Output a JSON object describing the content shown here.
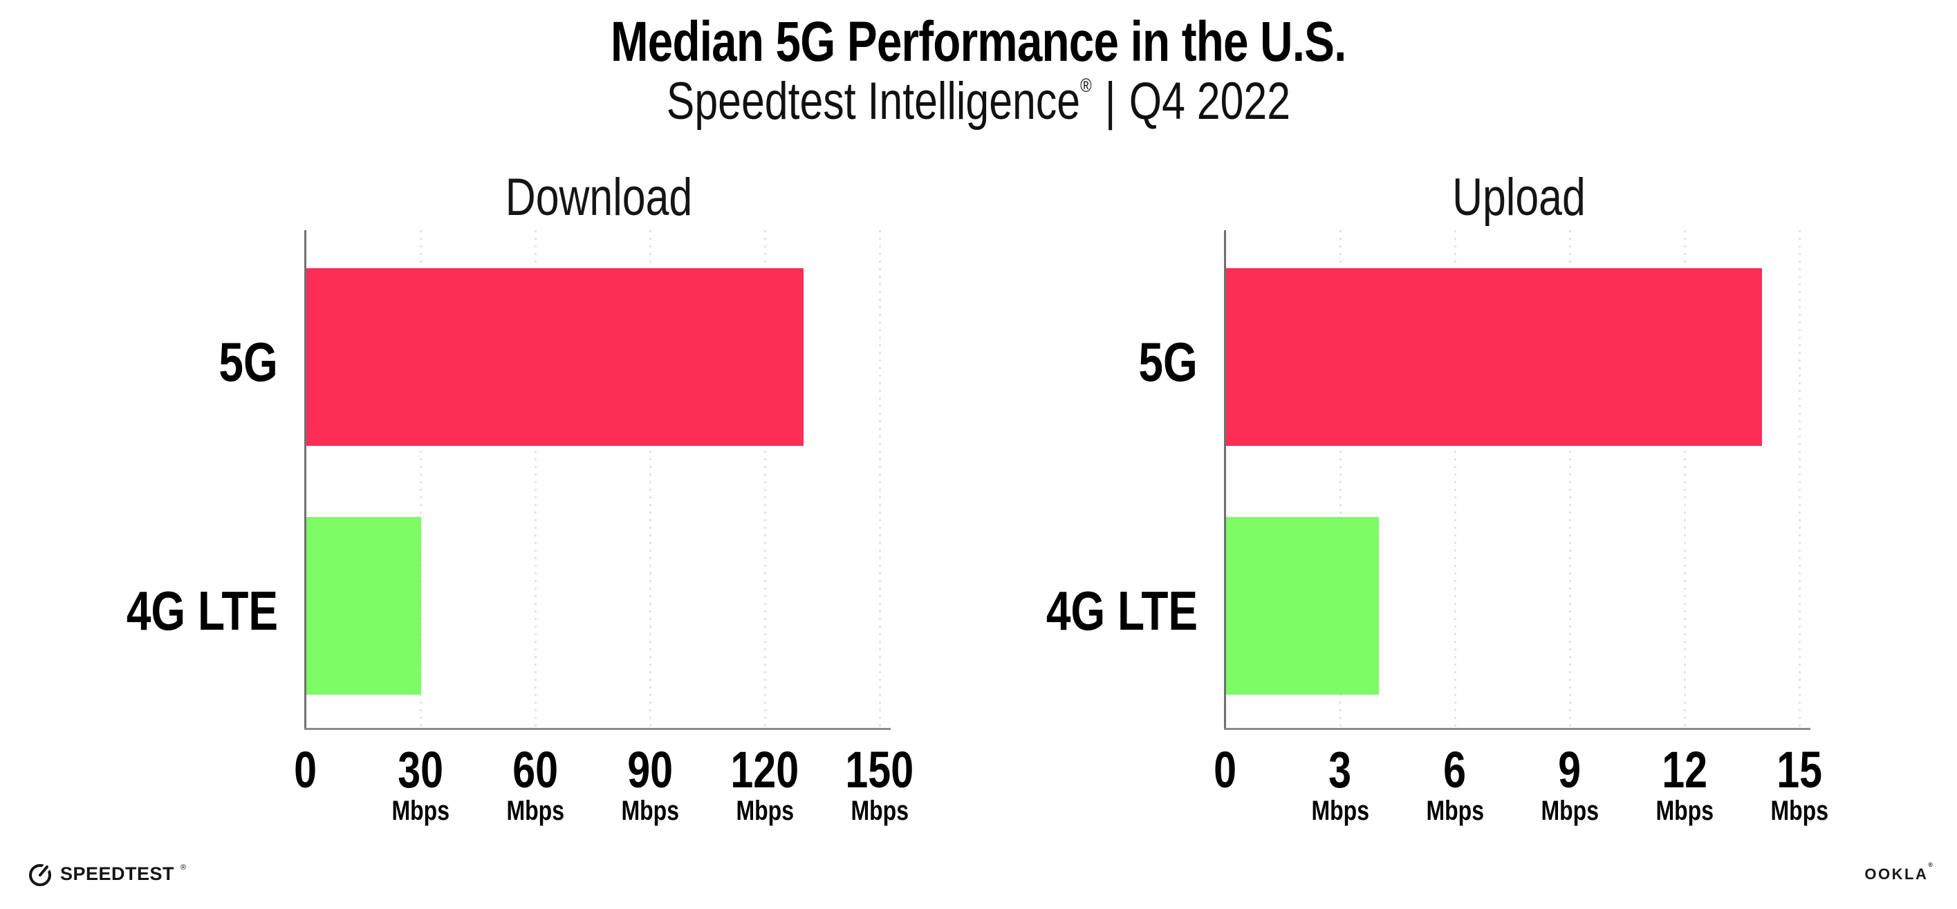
{
  "header": {
    "title": "Median 5G Performance in the U.S.",
    "subtitle": {
      "brand": "Speedtest Intelligence",
      "registered": "®",
      "separator": "|",
      "period": "Q4 2022"
    }
  },
  "chart_data": [
    {
      "type": "bar",
      "orientation": "horizontal",
      "title": "Download",
      "categories": [
        "5G",
        "4G LTE"
      ],
      "values": [
        130,
        30
      ],
      "unit": "Mbps",
      "xlim": [
        0,
        150
      ],
      "xticks": [
        0,
        30,
        60,
        90,
        120,
        150
      ],
      "series_colors": [
        "#FD2D55",
        "#7DFC66"
      ],
      "grid": "dotted vertical gridlines",
      "legend": "none"
    },
    {
      "type": "bar",
      "orientation": "horizontal",
      "title": "Upload",
      "categories": [
        "5G",
        "4G LTE"
      ],
      "values": [
        14,
        4
      ],
      "unit": "Mbps",
      "xlim": [
        0,
        15
      ],
      "xticks": [
        0,
        3,
        6,
        9,
        12,
        15
      ],
      "series_colors": [
        "#FD2D55",
        "#7DFC66"
      ],
      "grid": "dotted vertical gridlines",
      "legend": "none"
    }
  ],
  "footer": {
    "speedtest_wordmark": "SPEEDTEST",
    "speedtest_registered": "®",
    "ookla_wordmark": "OOKLA",
    "ookla_registered": "®"
  },
  "colors": {
    "bar_5g": "#FD2D55",
    "bar_4g_lte": "#7DFC66",
    "axis": "#8A8A8A",
    "gridline": "#E2E2EC",
    "text": "#0A0A0A",
    "background": "#FFFFFF"
  }
}
